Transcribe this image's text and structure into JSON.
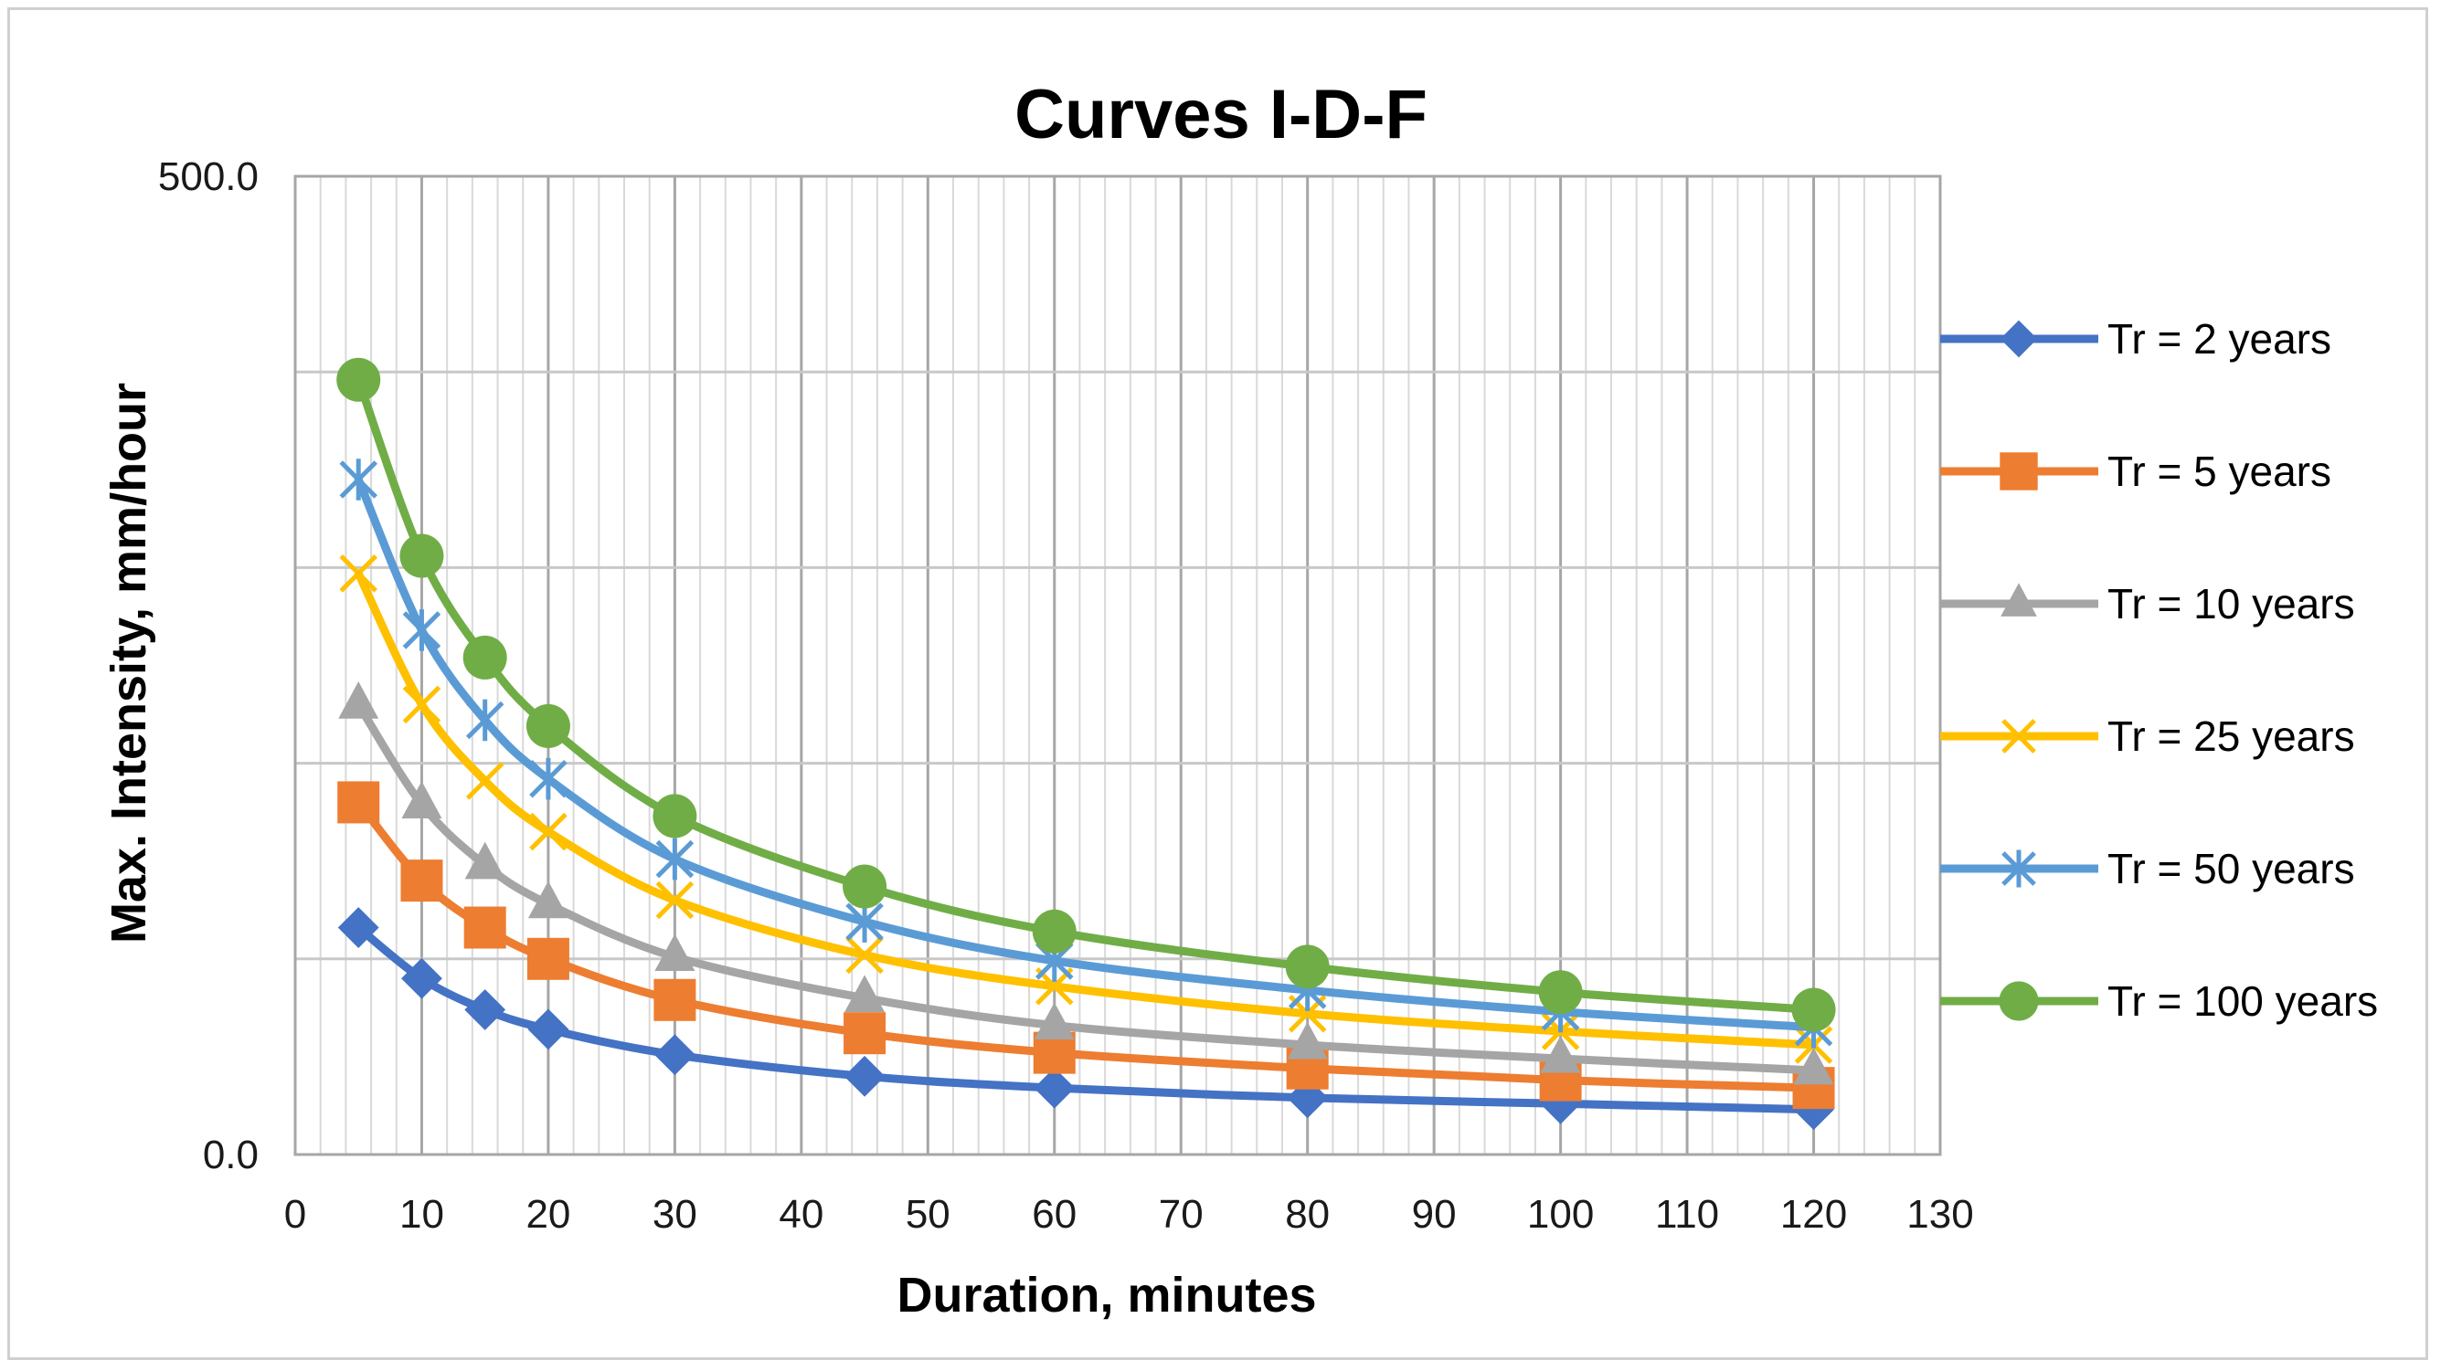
{
  "chart_data": {
    "type": "line",
    "title": "Curves I-D-F",
    "xlabel": "Duration, minutes",
    "ylabel": "Max. Intensity, mm/hour",
    "xlim": [
      0,
      130
    ],
    "ylim": [
      0,
      500
    ],
    "x_ticks": [
      "0",
      "10",
      "20",
      "30",
      "40",
      "50",
      "60",
      "70",
      "80",
      "90",
      "100",
      "110",
      "120",
      "130"
    ],
    "y_ticks": [
      "0.0",
      "500.0"
    ],
    "grid": true,
    "legend_position": "right",
    "x": [
      5,
      10,
      15,
      20,
      30,
      45,
      60,
      80,
      100,
      120
    ],
    "series": [
      {
        "name": "Tr = 2 years",
        "color": "#4472c4",
        "marker": "diamond",
        "values": [
          116,
          90,
          74,
          64,
          51,
          40,
          34,
          29,
          26,
          23
        ]
      },
      {
        "name": "Tr = 5 years",
        "color": "#ed7d31",
        "marker": "square",
        "values": [
          180,
          140,
          116,
          100,
          79,
          62,
          52,
          44,
          38,
          34
        ]
      },
      {
        "name": "Tr = 10 years",
        "color": "#a5a5a5",
        "marker": "triangle",
        "values": [
          230,
          179,
          148,
          128,
          101,
          80,
          66,
          56,
          49,
          43
        ]
      },
      {
        "name": "Tr = 25 years",
        "color": "#ffc000",
        "marker": "x",
        "values": [
          297,
          230,
          191,
          165,
          130,
          102,
          86,
          72,
          63,
          56
        ]
      },
      {
        "name": "Tr = 50 years",
        "color": "#5b9bd5",
        "marker": "star",
        "values": [
          345,
          268,
          222,
          192,
          151,
          119,
          99,
          84,
          73,
          65
        ]
      },
      {
        "name": "Tr = 100 years",
        "color": "#70ad47",
        "marker": "circle",
        "values": [
          396,
          306,
          254,
          219,
          173,
          137,
          114,
          96,
          83,
          74
        ]
      }
    ]
  }
}
